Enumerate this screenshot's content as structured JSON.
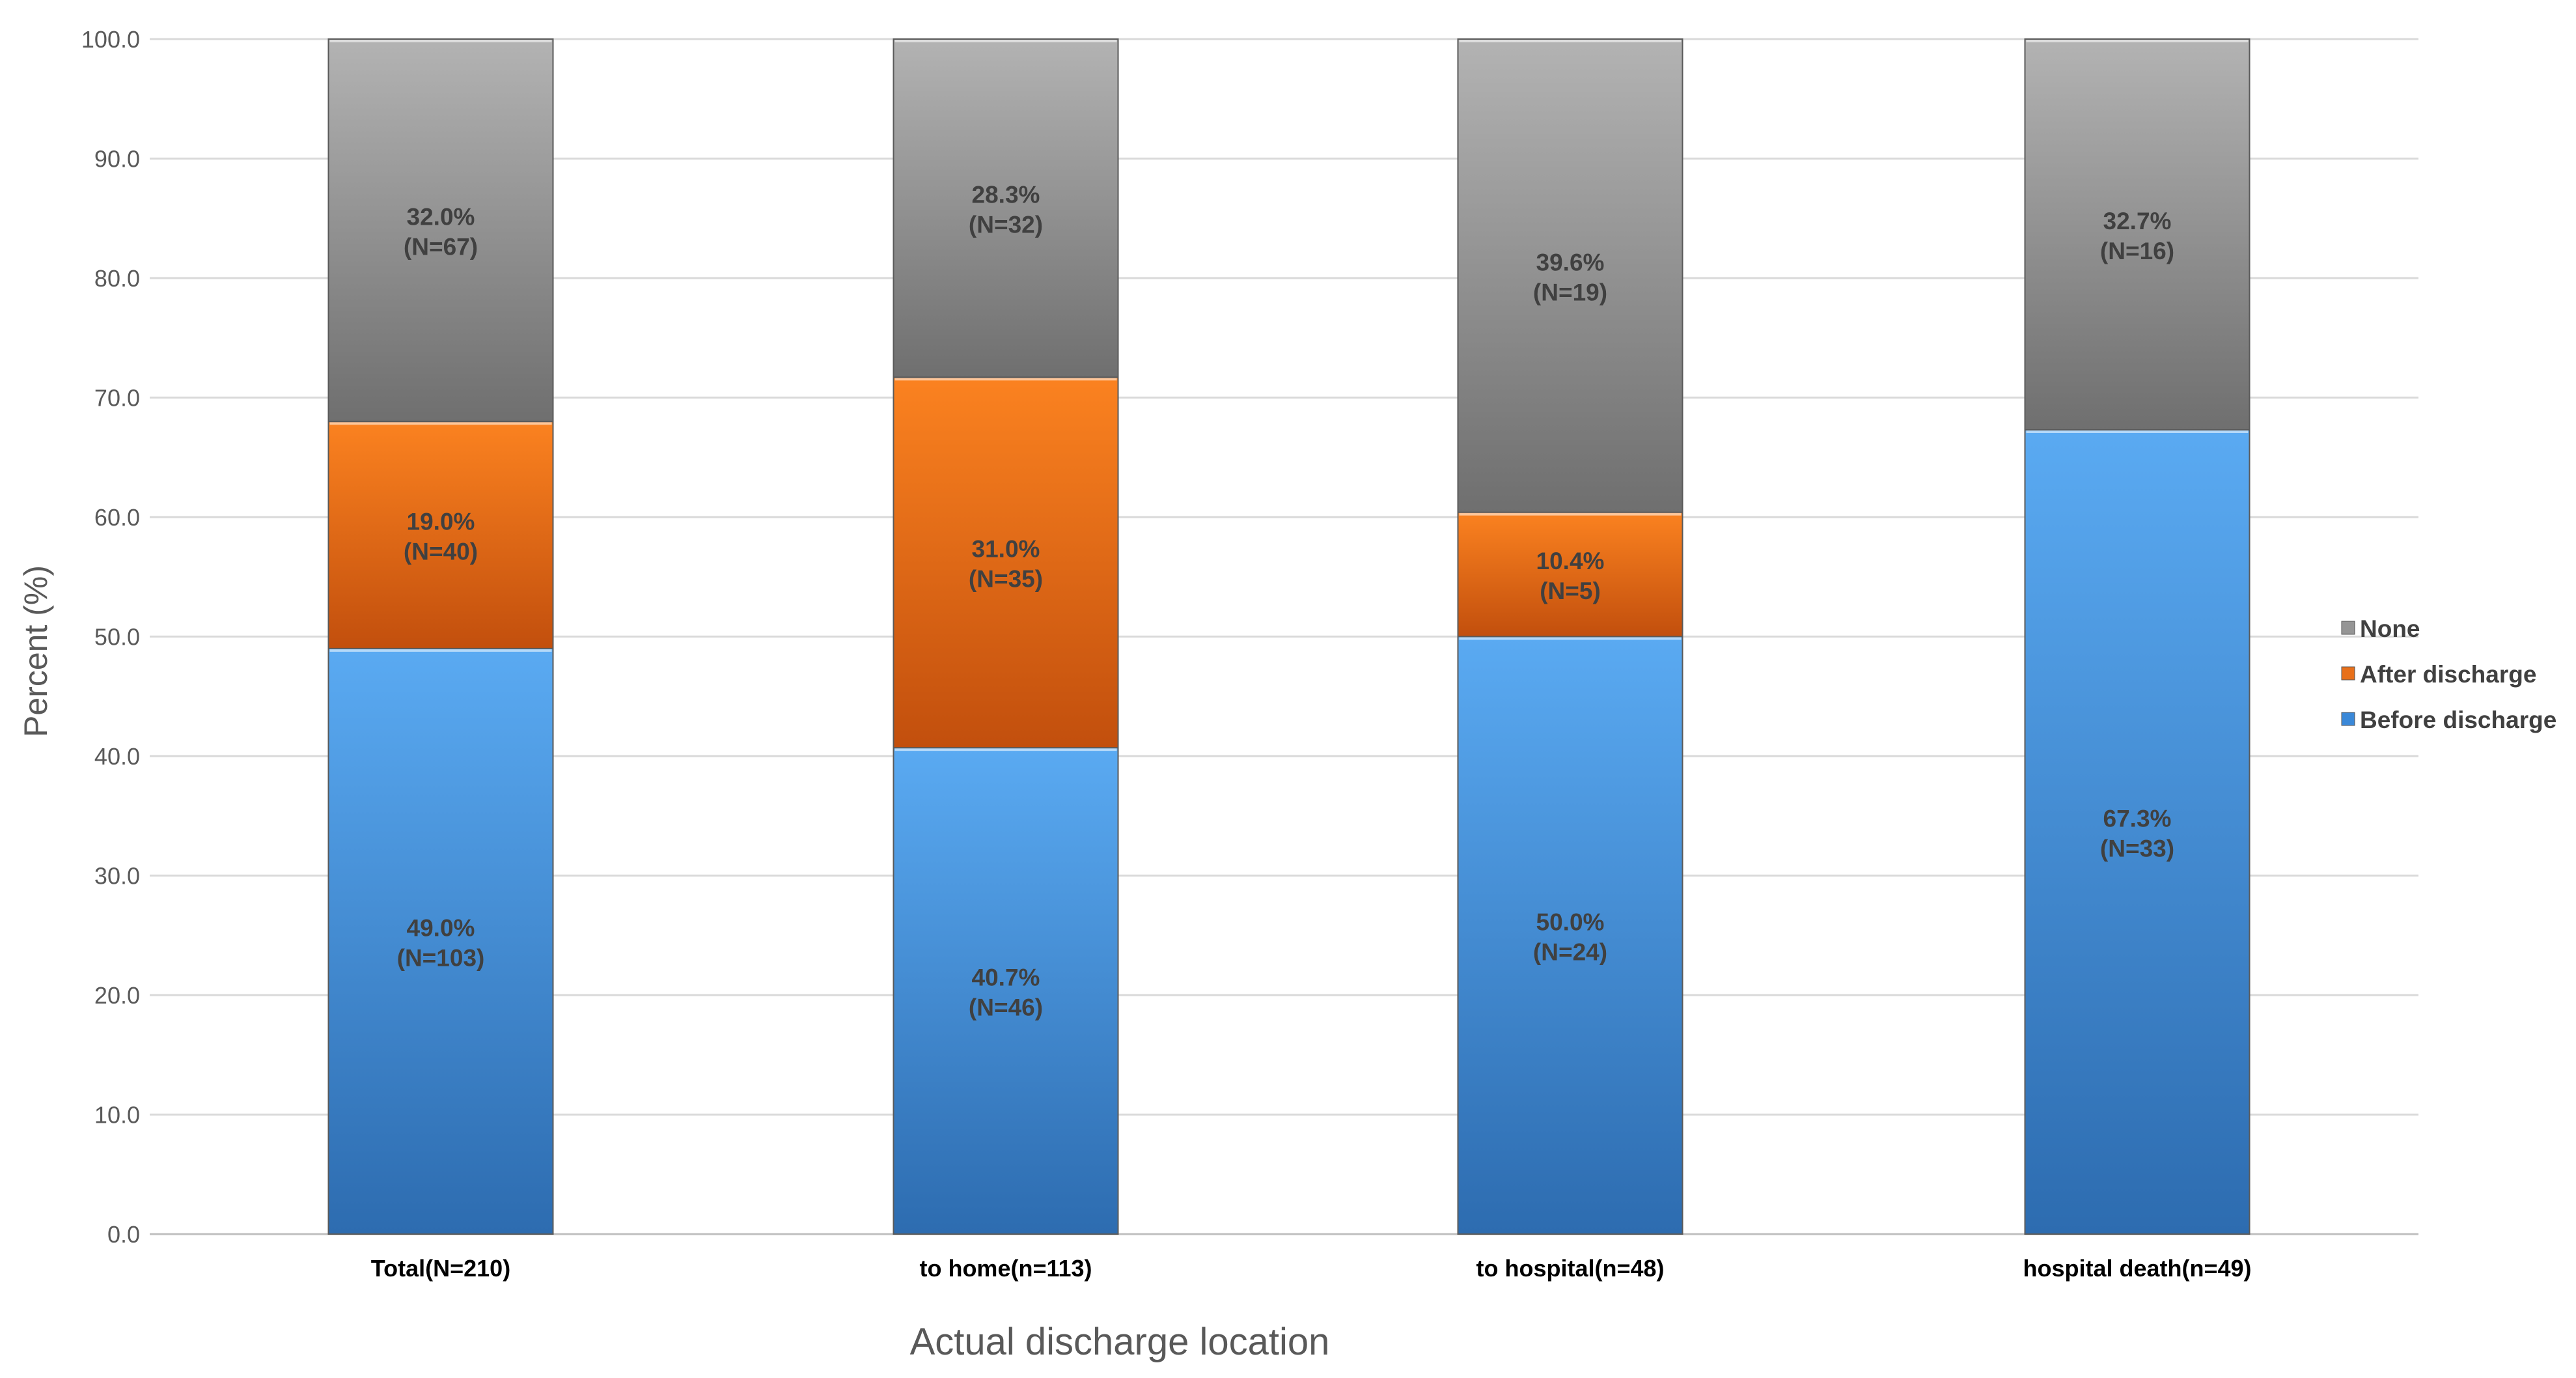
{
  "chart_data": {
    "type": "bar",
    "stacked": true,
    "title": "",
    "xlabel": "Actual discharge location",
    "ylabel": "Percent (%)",
    "ylim": [
      0,
      100
    ],
    "yticks": [
      "0.0",
      "10.0",
      "20.0",
      "30.0",
      "40.0",
      "50.0",
      "60.0",
      "70.0",
      "80.0",
      "90.0",
      "100.0"
    ],
    "grid": true,
    "legend_position": "right",
    "categories": [
      "Total(N=210)",
      "to home(n=113)",
      "to hospital(n=48)",
      "hospital death(n=49)"
    ],
    "series": [
      {
        "name": "Before discharge",
        "color": "#3a88d8",
        "values": [
          49.0,
          40.7,
          50.0,
          67.3
        ],
        "labels": [
          [
            "49.0%",
            "(N=103)"
          ],
          [
            "40.7%",
            "(N=46)"
          ],
          [
            "50.0%",
            "(N=24)"
          ],
          [
            "67.3%",
            "(N=33)"
          ]
        ]
      },
      {
        "name": "After discharge",
        "color": "#e8701a",
        "values": [
          19.0,
          31.0,
          10.4,
          0
        ],
        "labels": [
          [
            "19.0%",
            "(N=40)"
          ],
          [
            "31.0%",
            "(N=35)"
          ],
          [
            "10.4%",
            "(N=5)"
          ],
          null
        ]
      },
      {
        "name": "None",
        "color": "#959595",
        "values": [
          32.0,
          28.3,
          39.6,
          32.7
        ],
        "labels": [
          [
            "32.0%",
            "(N=67)"
          ],
          [
            "28.3%",
            "(N=32)"
          ],
          [
            "39.6%",
            "(N=19)"
          ],
          [
            "32.7%",
            "(N=16)"
          ]
        ]
      }
    ],
    "legend_order": [
      "None",
      "After discharge",
      "Before discharge"
    ]
  }
}
